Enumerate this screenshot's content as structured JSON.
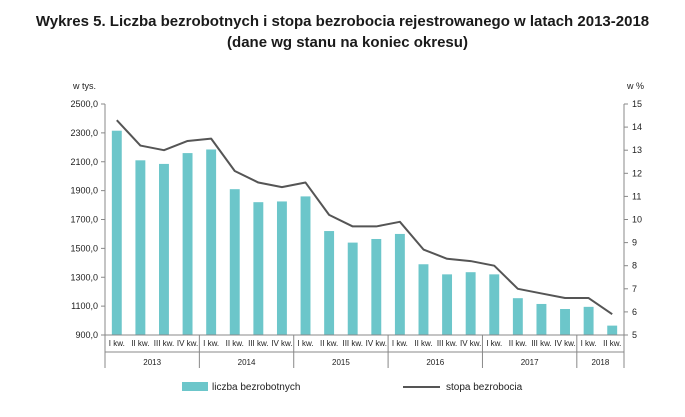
{
  "chart_data": {
    "type": "bar",
    "title": "Wykres 5. Liczba bezrobotnych i stopa bezrobocia rejestrowanego w latach 2013-2018",
    "subtitle": "(dane wg stanu na koniec okresu)",
    "left_axis_unit": "w tys.",
    "right_axis_unit": "w %",
    "ylim": [
      900,
      2500
    ],
    "yticks": [
      "2500,0",
      "2300,0",
      "2100,0",
      "1900,0",
      "1700,0",
      "1500,0",
      "1300,0",
      "1100,0",
      "900,0"
    ],
    "y2lim": [
      5,
      15
    ],
    "y2ticks": [
      "15",
      "14",
      "13",
      "12",
      "11",
      "10",
      "9",
      "8",
      "7",
      "6",
      "5"
    ],
    "categories": [
      "I kw.",
      "II kw.",
      "III kw.",
      "IV kw.",
      "I kw.",
      "II kw.",
      "III kw.",
      "IV kw.",
      "I kw.",
      "II kw.",
      "III kw.",
      "IV kw.",
      "I kw.",
      "II kw.",
      "III kw.",
      "IV kw.",
      "I kw.",
      "II kw.",
      "III kw.",
      "IV kw.",
      "I kw.",
      "II kw."
    ],
    "years": [
      {
        "label": "2013",
        "count": 4
      },
      {
        "label": "2014",
        "count": 4
      },
      {
        "label": "2015",
        "count": 4
      },
      {
        "label": "2016",
        "count": 4
      },
      {
        "label": "2017",
        "count": 4
      },
      {
        "label": "2018",
        "count": 2
      }
    ],
    "series": [
      {
        "name": "liczba bezrobotnych",
        "type": "bar",
        "axis": "left",
        "color": "#6cc6ca",
        "values": [
          2315,
          2110,
          2085,
          2160,
          2185,
          1910,
          1820,
          1825,
          1860,
          1620,
          1540,
          1565,
          1600,
          1390,
          1320,
          1335,
          1320,
          1155,
          1115,
          1080,
          1095,
          965
        ]
      },
      {
        "name": "stopa bezrobocia",
        "type": "line",
        "axis": "right",
        "color": "#555555",
        "values": [
          14.3,
          13.2,
          13.0,
          13.4,
          13.5,
          12.1,
          11.6,
          11.4,
          11.6,
          10.2,
          9.7,
          9.7,
          9.9,
          8.7,
          8.3,
          8.2,
          8.0,
          7.0,
          6.8,
          6.6,
          6.6,
          5.9
        ]
      }
    ],
    "legend_position": "bottom",
    "grid": false
  }
}
